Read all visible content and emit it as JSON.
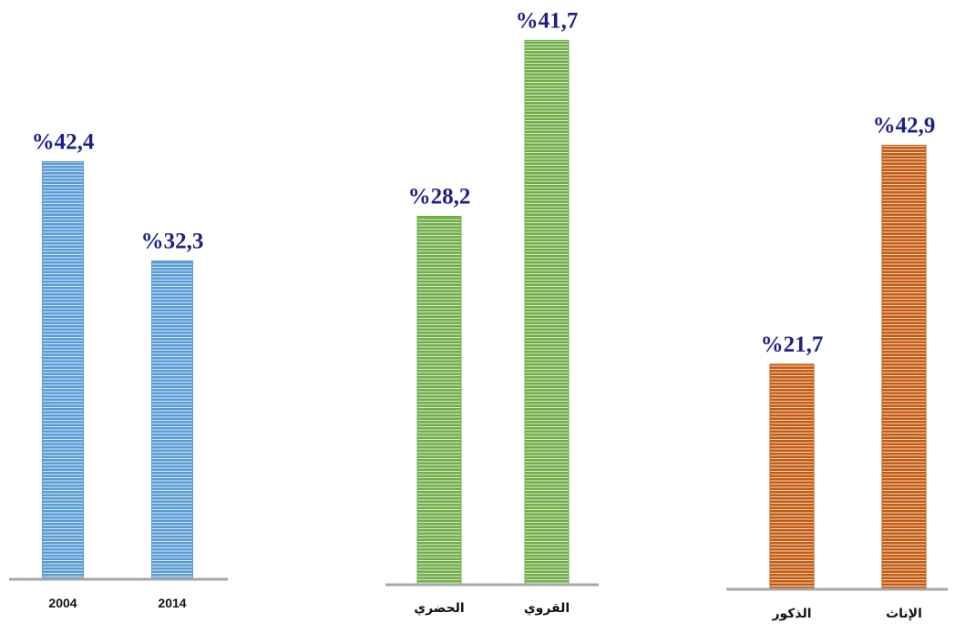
{
  "chart_data": [
    {
      "type": "bar",
      "categories": [
        "2004",
        "2014"
      ],
      "values": [
        42.4,
        32.3
      ],
      "value_labels": [
        "%42,4",
        "%32,3"
      ],
      "color": "#5b9bd5",
      "ylim": [
        0,
        57
      ]
    },
    {
      "type": "bar",
      "categories": [
        "الحضري",
        "القروي"
      ],
      "values": [
        28.2,
        41.7
      ],
      "value_labels": [
        "%28,2",
        "%41,7"
      ],
      "color": "#70ad47",
      "ylim": [
        0,
        43.4
      ]
    },
    {
      "type": "bar",
      "categories": [
        "الذكور",
        "الإناث"
      ],
      "values": [
        21.7,
        42.9
      ],
      "value_labels": [
        "%21,7",
        "%42,9"
      ],
      "color": "#c55a11",
      "ylim": [
        0,
        55.2
      ]
    }
  ]
}
